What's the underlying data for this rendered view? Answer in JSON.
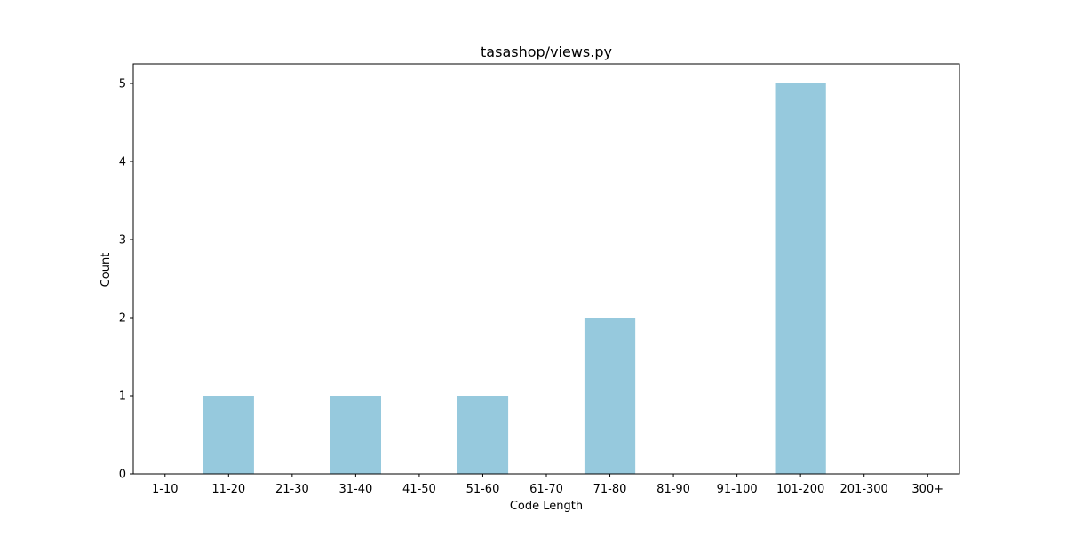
{
  "chart_data": {
    "type": "bar",
    "title": "tasashop/views.py",
    "xlabel": "Code Length",
    "ylabel": "Count",
    "categories": [
      "1-10",
      "11-20",
      "21-30",
      "31-40",
      "41-50",
      "51-60",
      "61-70",
      "71-80",
      "81-90",
      "91-100",
      "101-200",
      "201-300",
      "300+"
    ],
    "values": [
      0,
      1,
      0,
      1,
      0,
      1,
      0,
      2,
      0,
      0,
      5,
      0,
      0
    ],
    "ylim": [
      0,
      5.25
    ],
    "yticks": [
      0,
      1,
      2,
      3,
      4,
      5
    ],
    "grid": false,
    "bar_color": "#96c9dd"
  }
}
